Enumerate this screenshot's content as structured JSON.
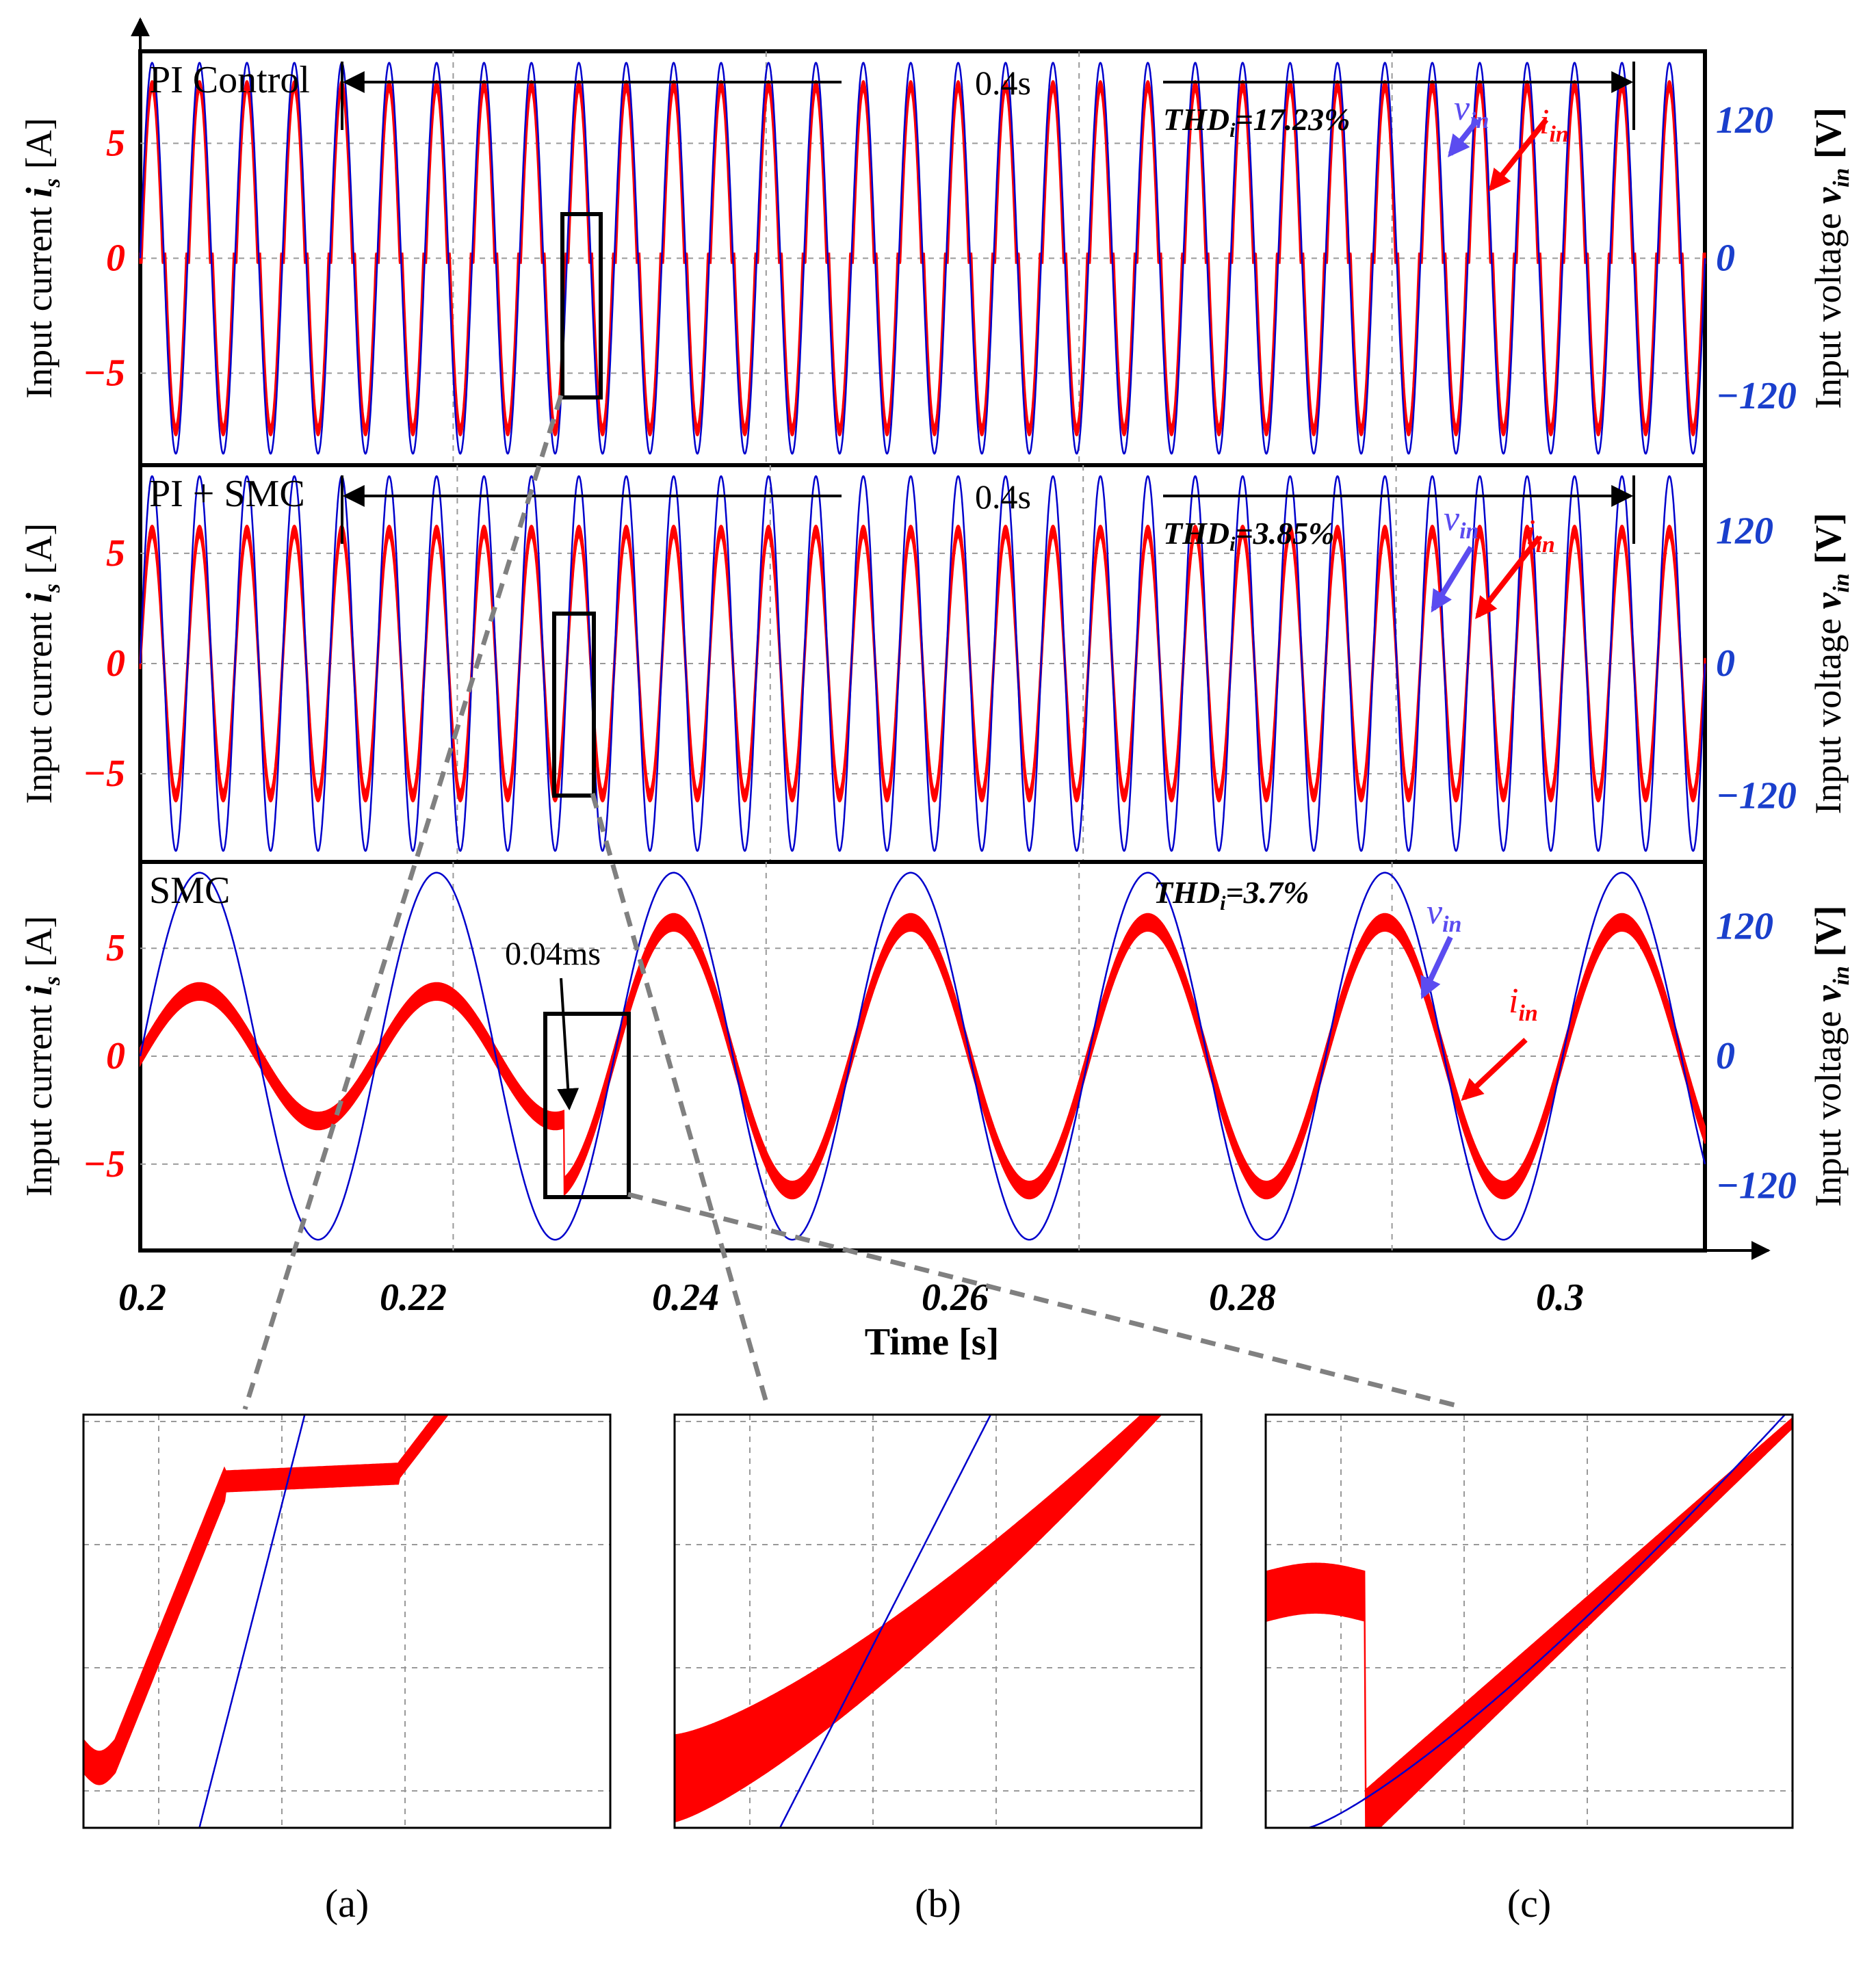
{
  "chart_data": {
    "type": "line",
    "x_axis": {
      "label": "Time [s]",
      "range": [
        0.2,
        0.31
      ],
      "ticks": [
        0.2,
        0.22,
        0.24,
        0.26,
        0.28,
        0.3
      ],
      "tick_labels": [
        "0.2",
        "0.22",
        "0.24",
        "0.26",
        "0.28",
        "0.3"
      ]
    },
    "grid": true,
    "colors": {
      "current": "#ff0000",
      "voltage": "#0000cc",
      "left_tick": "#ff0000",
      "right_tick": "#1a3fcc",
      "vin_arrow": "#5b4cf0",
      "iin_arrow": "#ff0000"
    },
    "panels": [
      {
        "id": "pi",
        "title": "PI Control",
        "duration_label": "0.4s",
        "thd_prefix": "THD",
        "thd_sub": "i",
        "thd_value": "=17.23%",
        "left_label_main": "Input current ",
        "left_label_sym": "i",
        "left_label_sub": "s",
        "left_label_unit": " [A]",
        "right_label_main": "Input voltage ",
        "right_label_sym": "v",
        "right_label_sub": "in",
        "right_label_unit": " [V]",
        "left_ticks": [
          "5",
          "0",
          "−5"
        ],
        "right_ticks": [
          "120",
          "0",
          "−120"
        ],
        "current_range_A": [
          -9,
          9
        ],
        "voltage_range_V": [
          -180,
          180
        ],
        "series": [
          {
            "name": "v_in",
            "symbol": "v",
            "sub": "in",
            "type": "sine",
            "freq_hz": 300,
            "amplitude_V": 170
          },
          {
            "name": "i_in",
            "symbol": "i",
            "sub": "in",
            "type": "sine_deadband",
            "freq_hz": 300,
            "amplitude_A": 7.5,
            "deadband_fraction": 0.18,
            "ripple_A": 0.4
          }
        ]
      },
      {
        "id": "pismc",
        "title": "PI + SMC",
        "duration_label": "0.4s",
        "thd_prefix": "THD",
        "thd_sub": "i",
        "thd_value": "=3.85%",
        "left_label_main": "Input current ",
        "left_label_sym": "i",
        "left_label_sub": "s",
        "left_label_unit": " [A]",
        "right_label_main": "Input voltage ",
        "right_label_sym": "v",
        "right_label_sub": "in",
        "right_label_unit": " [V]",
        "left_ticks": [
          "5",
          "0",
          "−5"
        ],
        "right_ticks": [
          "120",
          "0",
          "−120"
        ],
        "current_range_A": [
          -9,
          9
        ],
        "voltage_range_V": [
          -180,
          180
        ],
        "series": [
          {
            "name": "v_in",
            "symbol": "v",
            "sub": "in",
            "type": "sine",
            "freq_hz": 300,
            "amplitude_V": 170
          },
          {
            "name": "i_in",
            "symbol": "i",
            "sub": "in",
            "type": "sine",
            "freq_hz": 300,
            "amplitude_A": 6.0,
            "ripple_A": 0.5
          }
        ]
      },
      {
        "id": "smc",
        "title": "SMC",
        "thd_prefix": "THD",
        "thd_sub": "i",
        "thd_value": "=3.7%",
        "annotation": "0.04ms",
        "left_label_main": "Input current ",
        "left_label_sym": "i",
        "left_label_sub": "s",
        "left_label_unit": " [A]",
        "right_label_main": "Input voltage ",
        "right_label_sym": "v",
        "right_label_sub": "in",
        "right_label_unit": " [V]",
        "left_ticks": [
          "5",
          "0",
          "−5"
        ],
        "right_ticks": [
          "120",
          "0",
          "−120"
        ],
        "current_range_A": [
          -9,
          9
        ],
        "voltage_range_V": [
          -180,
          180
        ],
        "series": [
          {
            "name": "v_in",
            "symbol": "v",
            "sub": "in",
            "type": "sine",
            "freq_hz": 60,
            "amplitude_V": 170
          },
          {
            "name": "i_in",
            "symbol": "i",
            "sub": "in",
            "type": "sine_step",
            "freq_hz": 60,
            "amplitude_before_A": 3.0,
            "amplitude_after_A": 6.2,
            "step_time_s": 0.2298,
            "ripple_A": 0.8
          }
        ]
      }
    ],
    "insets": [
      {
        "id": "a",
        "label": "(a)",
        "source_panel": "pi",
        "description_series": [
          "i_in",
          "v_in"
        ]
      },
      {
        "id": "b",
        "label": "(b)",
        "source_panel": "pismc",
        "description_series": [
          "i_in",
          "v_in"
        ]
      },
      {
        "id": "c",
        "label": "(c)",
        "source_panel": "smc",
        "description_series": [
          "i_in",
          "v_in"
        ]
      }
    ]
  }
}
